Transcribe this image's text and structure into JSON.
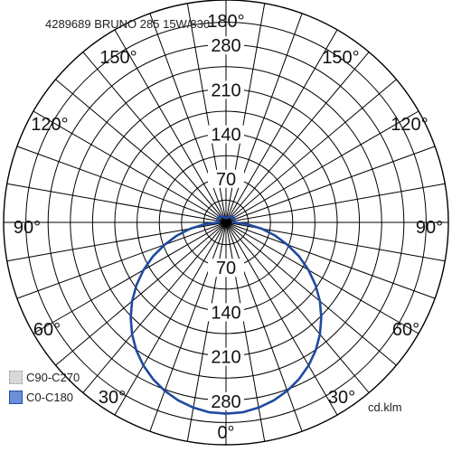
{
  "chart_data": {
    "type": "polar",
    "title": "4289689 BRUNO 285 15W/830",
    "unit": "cd.klm",
    "radial_ticks": [
      70,
      140,
      210,
      280
    ],
    "radial_max": 350,
    "angle_labels": [
      "180°",
      "150°",
      "150°",
      "120°",
      "120°",
      "90°",
      "90°",
      "60°",
      "60°",
      "30°",
      "30°",
      "0°"
    ],
    "legend": [
      {
        "name": "C90-C270",
        "color": "#d8d8d8",
        "border": "#aaaaaa"
      },
      {
        "name": "C0-C180",
        "color": "#6b8fd6",
        "border": "#1f4fa8"
      }
    ],
    "series": [
      {
        "name": "C0-C180",
        "color": "#1f4aa0",
        "angles": [
          0,
          5,
          10,
          15,
          20,
          25,
          30,
          35,
          40,
          45,
          50,
          55,
          60,
          65,
          70,
          75,
          80,
          85,
          90,
          95,
          100,
          105,
          110,
          115,
          120,
          125,
          130,
          135,
          140,
          145,
          150,
          155,
          160,
          165,
          170,
          175,
          180
        ],
        "values": [
          301,
          300,
          296,
          290,
          282,
          272,
          260,
          246,
          230,
          212,
          193,
          172,
          150,
          127,
          103,
          80,
          57,
          34,
          12,
          12,
          13,
          14,
          14,
          14,
          14,
          14,
          14,
          13,
          12,
          11,
          10,
          9,
          8,
          8,
          7,
          7,
          7
        ]
      }
    ]
  }
}
